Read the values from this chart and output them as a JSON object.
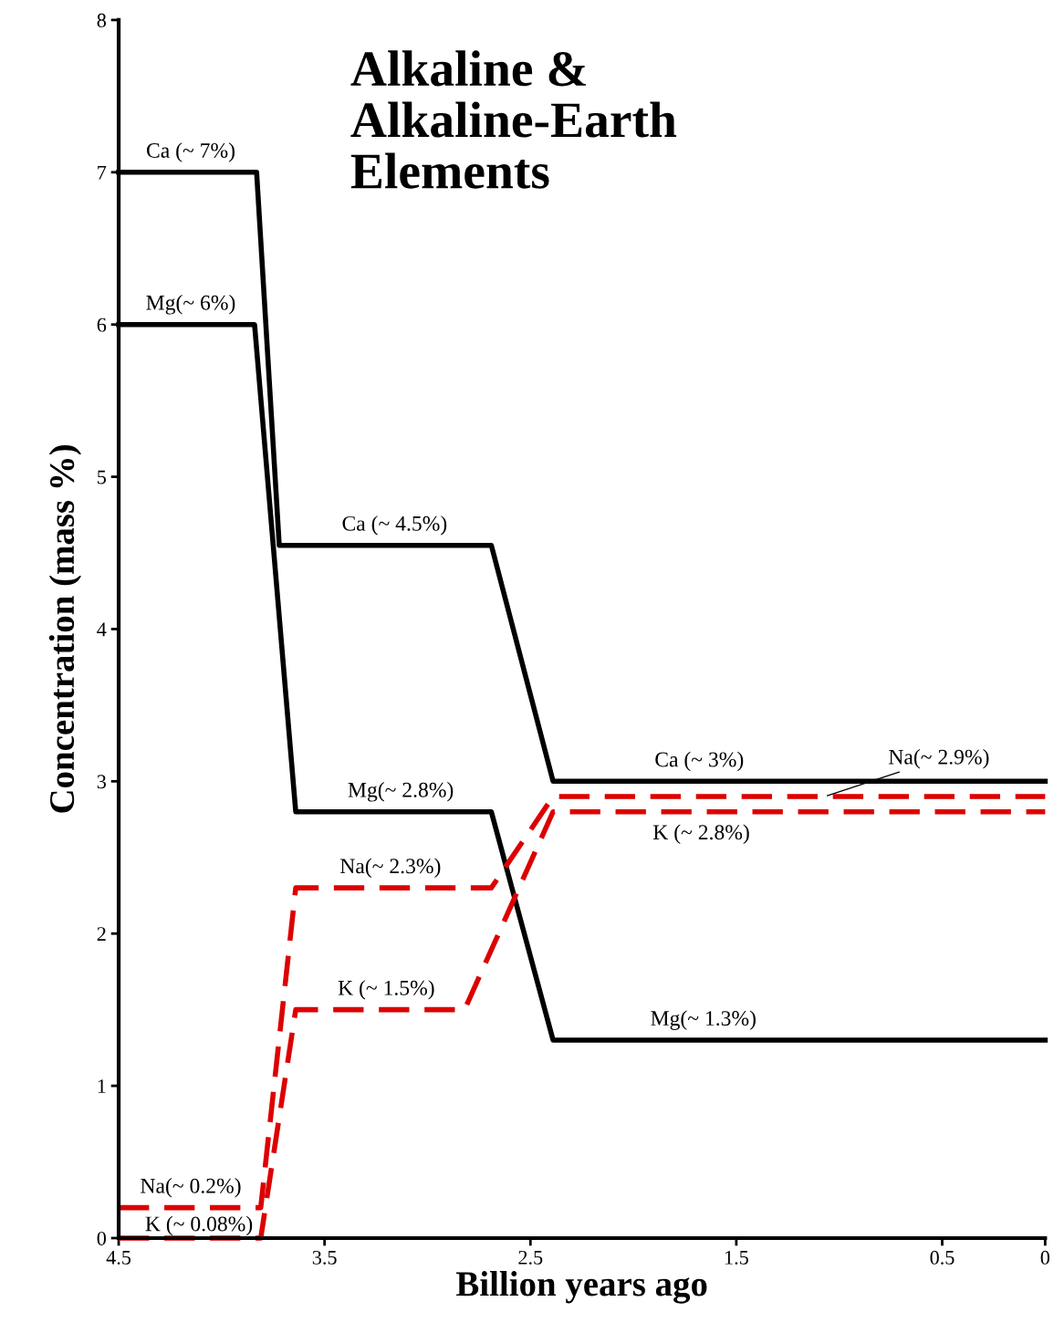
{
  "chart_data": {
    "type": "line",
    "title": "Alkaline &\nAlkaline-Earth\nElements",
    "xlabel": "Billion years ago",
    "ylabel": "Concentration (mass %)",
    "xlim": [
      4.5,
      0
    ],
    "xticks": [
      4.5,
      3.5,
      2.5,
      1.5,
      0.5,
      0
    ],
    "ylim": [
      0,
      8
    ],
    "yticks": [
      0,
      1,
      2,
      3,
      4,
      5,
      6,
      7,
      8
    ],
    "grid": false,
    "series": [
      {
        "color": "#000000",
        "line_style": "solid",
        "x": [
          4.5,
          3.83,
          3.72,
          2.69,
          2.39,
          0
        ],
        "values": [
          7,
          7,
          4.55,
          4.55,
          3,
          3
        ]
      },
      {
        "color": "#000000",
        "line_style": "solid",
        "x": [
          4.5,
          3.84,
          3.64,
          2.69,
          2.39,
          0
        ],
        "values": [
          6,
          6,
          2.8,
          2.8,
          1.3,
          1.3
        ]
      },
      {
        "color": "#dd0000",
        "line_style": "dashed",
        "x": [
          4.5,
          3.81,
          3.64,
          2.69,
          2.39,
          0
        ],
        "values": [
          0.2,
          0.2,
          2.3,
          2.3,
          2.9,
          2.9
        ]
      },
      {
        "color": "#dd0000",
        "line_style": "dashed",
        "x": [
          4.5,
          3.81,
          3.64,
          2.82,
          2.39,
          0
        ],
        "values": [
          0,
          0,
          1.5,
          1.5,
          2.8,
          2.8
        ]
      }
    ],
    "annotations": [
      {
        "text": "Ca (~ 7%)",
        "x": 4.15,
        "y": 7
      },
      {
        "text": "Mg(~ 6%)",
        "x": 4.15,
        "y": 6
      },
      {
        "text": "Ca (~ 4.5%)",
        "x": 3.16,
        "y": 4.55
      },
      {
        "text": "Mg(~ 2.8%)",
        "x": 3.13,
        "y": 2.8
      },
      {
        "text": "Na(~ 2.3%)",
        "x": 3.18,
        "y": 2.3
      },
      {
        "text": "K (~ 1.5%)",
        "x": 3.2,
        "y": 1.5
      },
      {
        "text": "Ca (~ 3%)",
        "x": 1.68,
        "y": 3
      },
      {
        "text": "Na(~ 2.9%)",
        "x": 1.07,
        "y": 2.9
      },
      {
        "text": "K (~ 2.8%)",
        "x": 1.67,
        "y": 2.8
      },
      {
        "text": "Mg(~ 1.3%)",
        "x": 1.66,
        "y": 1.3
      },
      {
        "text": "Na(~ 0.2%)",
        "x": 4.15,
        "y": 0.2
      },
      {
        "text": "K (~ 0.08%)",
        "x": 4.11,
        "y": 0
      }
    ]
  }
}
